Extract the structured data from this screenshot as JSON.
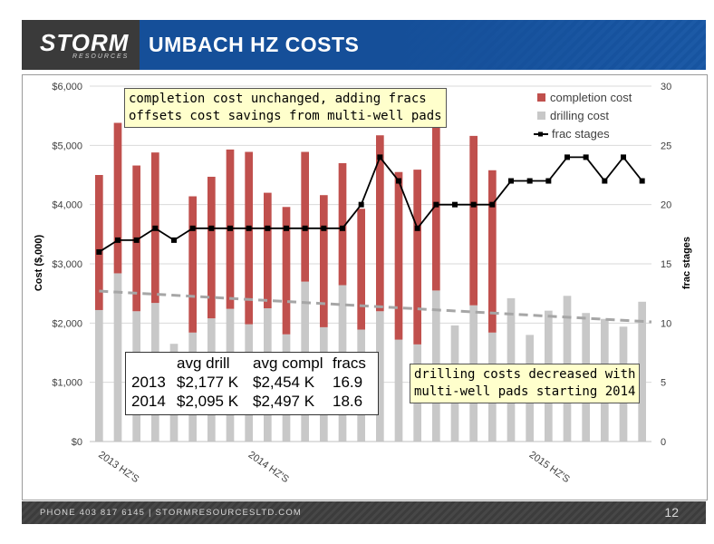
{
  "header": {
    "logo_text": "STORM",
    "logo_subtext": "RESOURCES",
    "title": "UMBACH HZ COSTS"
  },
  "footer": {
    "contact": "PHONE 403 817 6145   |   STORMRESOURCESLTD.COM",
    "page_number": "12"
  },
  "colors": {
    "completion": "#c0504d",
    "drilling": "#c8c8c8",
    "frac_line": "#000000",
    "trend": "#a6a6a6",
    "header_blue": "#154f99"
  },
  "notes": {
    "completion_note": "completion cost unchanged, adding fracs\noffsets cost savings from multi-well pads",
    "drilling_note": "drilling costs decreased with\nmulti-well pads starting 2014"
  },
  "stats": {
    "headers": [
      "",
      "avg drill",
      "avg compl",
      "fracs"
    ],
    "rows": [
      [
        "2013",
        "$2,177 K",
        "$2,454 K",
        "16.9"
      ],
      [
        "2014",
        "$2,095 K",
        "$2,497 K",
        "18.6"
      ]
    ]
  },
  "chart_data": {
    "type": "bar",
    "stacked": true,
    "ylabel": "Cost ($,000)",
    "y2label": "frac stages",
    "ylim": [
      0,
      6000
    ],
    "y2lim": [
      0,
      30
    ],
    "y_ticks": [
      "$0",
      "$1,000",
      "$2,000",
      "$3,000",
      "$4,000",
      "$5,000",
      "$6,000"
    ],
    "y2_ticks": [
      "0",
      "5",
      "10",
      "15",
      "20",
      "25",
      "30"
    ],
    "x_group_labels": [
      {
        "label": "2013 HZ'S",
        "at_index": 1
      },
      {
        "label": "2014 HZ'S",
        "at_index": 9
      },
      {
        "label": "2015 HZ'S",
        "at_index": 24
      }
    ],
    "legend": [
      "completion cost",
      "drilling cost",
      "frac stages"
    ],
    "legend_position": "top-right",
    "series": [
      {
        "name": "drilling cost",
        "values": [
          2220,
          2840,
          2200,
          2340,
          1650,
          1840,
          2080,
          2240,
          1980,
          2250,
          1810,
          2700,
          1930,
          2640,
          1890,
          2200,
          1720,
          1640,
          2550,
          1960,
          2300,
          1840,
          2420,
          1800,
          2210,
          2460,
          2170,
          2070,
          1940,
          2360
        ]
      },
      {
        "name": "completion cost",
        "values": [
          2280,
          2540,
          2460,
          2540,
          0,
          2300,
          2390,
          2690,
          2910,
          1950,
          2150,
          2190,
          2230,
          2060,
          2040,
          2970,
          2830,
          2950,
          3350,
          0,
          2860,
          2740,
          0,
          0,
          0,
          0,
          0,
          0,
          0,
          0
        ]
      },
      {
        "name": "frac stages",
        "values": [
          16,
          17,
          17,
          18,
          17,
          18,
          18,
          18,
          18,
          18,
          18,
          18,
          18,
          18,
          20,
          24,
          22,
          18,
          20,
          20,
          20,
          20,
          22,
          22,
          22,
          24,
          24,
          22,
          24,
          22
        ]
      },
      {
        "name": "drilling trend",
        "endpoints": [
          12.7,
          10.1
        ]
      }
    ]
  }
}
